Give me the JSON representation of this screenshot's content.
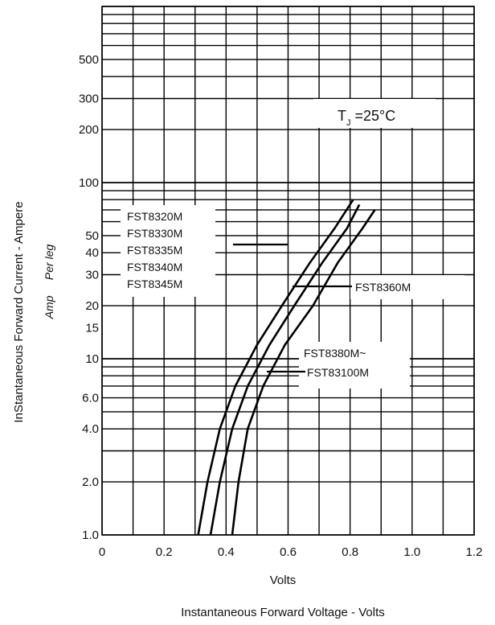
{
  "chart_data": {
    "type": "line",
    "title": "",
    "xlabel": "Volts",
    "xlabel_secondary": "Instantaneous Forward Voltage - Volts",
    "ylabel": "InStantaneous Forward Current - Ampere",
    "ylabel_secondary": "Amp     Per leg",
    "y_scale": "log",
    "xlim": [
      0,
      1.2
    ],
    "ylim": [
      1,
      1000
    ],
    "grid": true,
    "x_ticks": [
      0,
      0.2,
      0.4,
      0.6,
      0.8,
      1.0,
      1.2
    ],
    "x_tick_labels": [
      "0",
      "0.2",
      "0.4",
      "0.6",
      "0.8",
      "1.0",
      "1.2"
    ],
    "y_ticks": [
      1,
      2,
      4,
      6,
      10,
      15,
      20,
      30,
      40,
      50,
      100,
      200,
      300,
      500
    ],
    "y_tick_labels": [
      "1.0",
      "2.0",
      "4.0",
      "6.0",
      "10",
      "15",
      "20",
      "30",
      "40",
      "50",
      "100",
      "200",
      "300",
      "500"
    ],
    "condition_label": {
      "base": "T",
      "sub": "J",
      "rest": " =25°C"
    },
    "series": [
      {
        "labels": [
          "FST8320M",
          "FST8330M",
          "FST8335M",
          "FST8340M",
          "FST8345M"
        ],
        "x": [
          0.31,
          0.34,
          0.38,
          0.43,
          0.5,
          0.58,
          0.67,
          0.75,
          0.81
        ],
        "y": [
          1,
          2,
          4,
          7,
          12,
          20,
          35,
          55,
          80
        ]
      },
      {
        "labels": [
          "FST8360M"
        ],
        "x": [
          0.35,
          0.38,
          0.42,
          0.47,
          0.54,
          0.62,
          0.71,
          0.79,
          0.83
        ],
        "y": [
          1,
          2,
          4,
          7,
          12,
          20,
          35,
          55,
          75
        ]
      },
      {
        "labels": [
          "FST8380M~",
          "FST83100M"
        ],
        "x": [
          0.42,
          0.44,
          0.47,
          0.52,
          0.59,
          0.68,
          0.76,
          0.84,
          0.88
        ],
        "y": [
          1,
          2,
          4,
          7,
          12,
          20,
          35,
          55,
          70
        ]
      }
    ]
  }
}
